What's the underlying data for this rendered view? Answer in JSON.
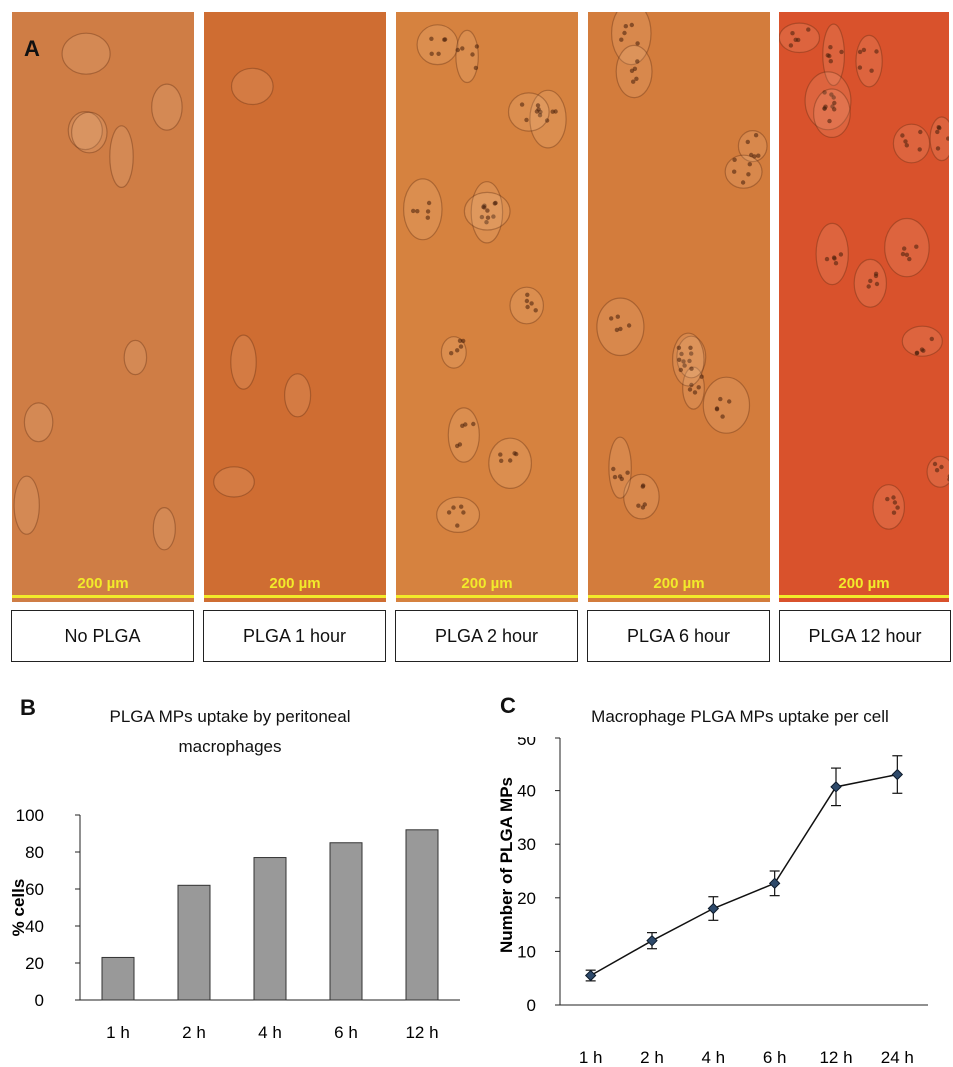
{
  "panel_a": {
    "letter": "A",
    "images": [
      {
        "scale_bar": "200 µm",
        "condition": "No PLGA",
        "tint": "#cf7d45"
      },
      {
        "scale_bar": "200 µm",
        "condition": "PLGA 1 hour",
        "tint": "#cf6d32"
      },
      {
        "scale_bar": "200 µm",
        "condition": "PLGA 2 hour",
        "tint": "#d6823f"
      },
      {
        "scale_bar": "200 µm",
        "condition": "PLGA 6 hour",
        "tint": "#d37c3c"
      },
      {
        "scale_bar": "200 µm",
        "condition": "PLGA 12 hour",
        "tint": "#d9522c"
      }
    ]
  },
  "chart_data": [
    {
      "panel": "B",
      "type": "bar",
      "title": "PLGA MPs uptake by peritoneal macrophages",
      "ylabel": "% cells",
      "xlabel": "",
      "categories": [
        "1 h",
        "2 h",
        "4 h",
        "6 h",
        "12 h"
      ],
      "values": [
        23,
        62,
        77,
        85,
        92
      ],
      "ylim": [
        0,
        100
      ],
      "yticks": [
        0,
        20,
        40,
        60,
        80,
        100
      ],
      "bar_color": "#999999",
      "grid": false
    },
    {
      "panel": "C",
      "type": "line",
      "title": "Macrophage PLGA MPs uptake per cell",
      "ylabel": "Number of PLGA MPs",
      "xlabel": "",
      "categories": [
        "1 h",
        "2 h",
        "4 h",
        "6 h",
        "12 h",
        "24 h"
      ],
      "values": [
        5.5,
        12,
        18,
        22.7,
        40.7,
        43
      ],
      "errors": [
        1,
        1.5,
        2.2,
        2.3,
        3.5,
        3.5
      ],
      "ylim": [
        0,
        50
      ],
      "yticks": [
        0,
        10,
        20,
        30,
        40,
        50
      ],
      "line_color": "#111111",
      "marker_color": "#2e4a6b",
      "grid": false
    }
  ]
}
